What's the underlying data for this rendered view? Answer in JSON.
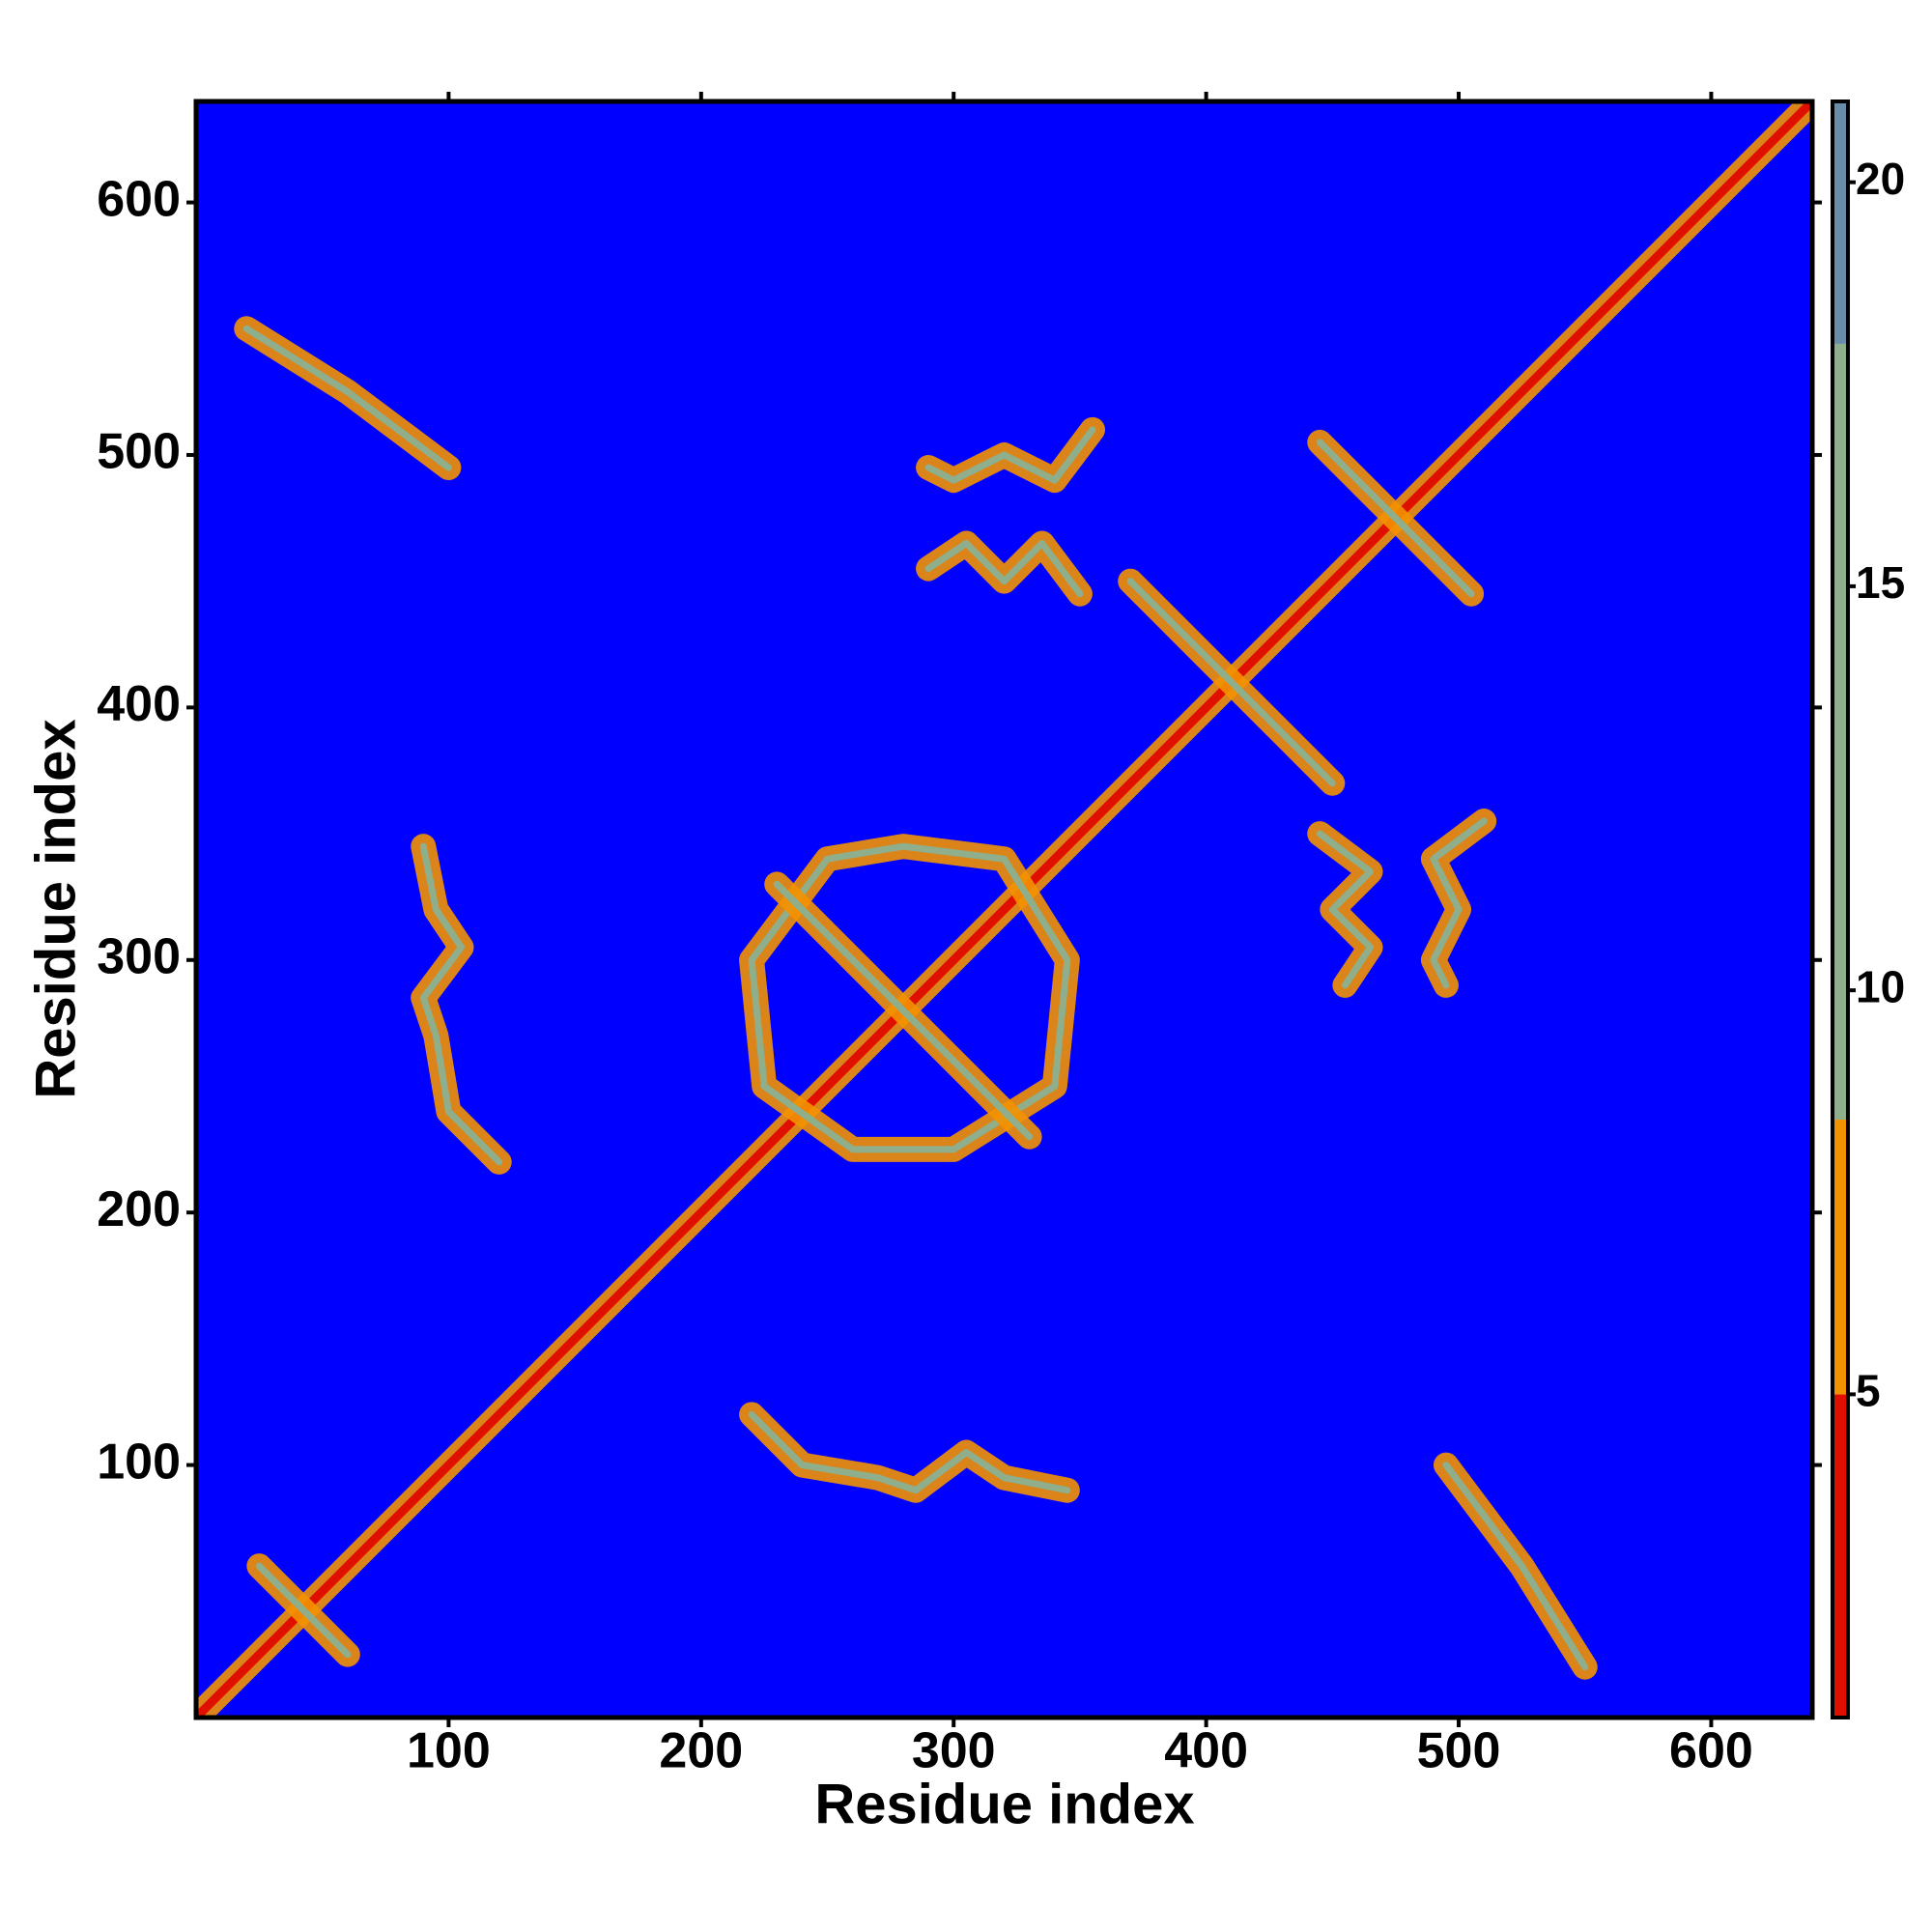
{
  "chart_data": {
    "type": "heatmap",
    "xlabel": "Residue index",
    "ylabel": "Residue index",
    "xlim": [
      0,
      640
    ],
    "ylim": [
      0,
      640
    ],
    "xticks": [
      100,
      200,
      300,
      400,
      500,
      600
    ],
    "yticks": [
      100,
      200,
      300,
      400,
      500,
      600
    ],
    "background_color": "#0000ff",
    "colorbar": {
      "lim": [
        1,
        21
      ],
      "ticks": [
        5,
        10,
        15,
        20
      ],
      "segments": [
        {
          "range": [
            1,
            5
          ],
          "color": "#e01000"
        },
        {
          "range": [
            5,
            8.4
          ],
          "color": "#f39200"
        },
        {
          "range": [
            8.4,
            18
          ],
          "color": "#8fae8c"
        },
        {
          "range": [
            18,
            21
          ],
          "color": "#6a8cab"
        }
      ]
    },
    "bands": [
      {
        "x": [
          0,
          640
        ],
        "y": [
          0,
          640
        ],
        "value": 3
      },
      {
        "x": [
          20,
          60,
          100
        ],
        "y": [
          550,
          525,
          495
        ],
        "value": 9
      },
      {
        "x": [
          550,
          525,
          495
        ],
        "y": [
          20,
          60,
          100
        ],
        "value": 9
      },
      {
        "x": [
          90,
          95,
          105,
          90,
          95,
          100,
          120
        ],
        "y": [
          345,
          320,
          305,
          285,
          270,
          240,
          220
        ],
        "value": 9
      },
      {
        "x": [
          345,
          320,
          305,
          285,
          270,
          240,
          220
        ],
        "y": [
          90,
          95,
          105,
          90,
          95,
          100,
          120
        ],
        "value": 9
      },
      {
        "x": [
          290,
          300,
          320,
          340,
          355
        ],
        "y": [
          495,
          490,
          500,
          490,
          510
        ],
        "value": 9
      },
      {
        "x": [
          495,
          490,
          500,
          490,
          510
        ],
        "y": [
          290,
          300,
          320,
          340,
          355
        ],
        "value": 9
      },
      {
        "x": [
          290,
          305,
          320,
          335,
          350
        ],
        "y": [
          455,
          465,
          450,
          465,
          445
        ],
        "value": 9
      },
      {
        "x": [
          455,
          465,
          450,
          465,
          445
        ],
        "y": [
          290,
          305,
          320,
          335,
          350
        ],
        "value": 9
      },
      {
        "x": [
          220,
          250,
          280,
          320,
          345,
          340,
          300,
          260,
          225,
          220
        ],
        "y": [
          300,
          340,
          345,
          340,
          300,
          250,
          225,
          225,
          250,
          300
        ],
        "value": 10
      },
      {
        "x": [
          230,
          330
        ],
        "y": [
          330,
          230
        ],
        "value": 9
      },
      {
        "x": [
          370,
          450
        ],
        "y": [
          450,
          370
        ],
        "value": 9
      },
      {
        "x": [
          445,
          505
        ],
        "y": [
          505,
          445
        ],
        "value": 9
      },
      {
        "x": [
          25,
          60
        ],
        "y": [
          60,
          25
        ],
        "value": 10
      }
    ]
  }
}
